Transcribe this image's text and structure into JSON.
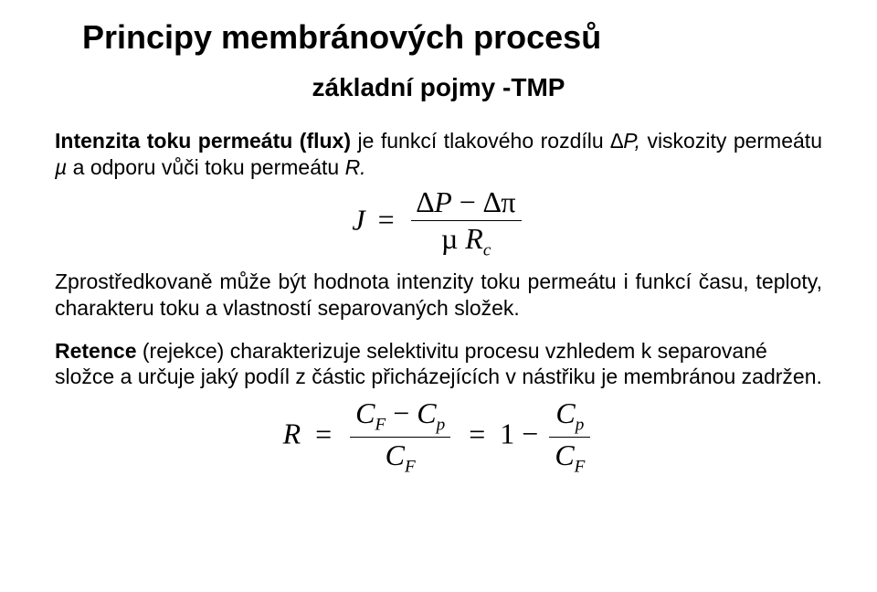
{
  "title": "Principy membránových procesů",
  "subtitle": "základní pojmy -TMP",
  "p1_a": "Intenzita toku permeátu (flux)",
  "p1_b": " je funkcí tlakového rozdílu ",
  "p1_c": "∆P,",
  "p1_d": " viskozity permeátu ",
  "p1_e": "µ",
  "p1_f": " a odporu vůči toku permeátu ",
  "p1_g": "R.",
  "eq1": {
    "lhs": "J",
    "eq": "=",
    "num_a": "∆",
    "num_b": "P",
    "num_c": " − ",
    "num_d": "∆π",
    "den_a": "µ",
    "den_b": " R",
    "den_sub": "c"
  },
  "p2": "Zprostředkovaně může být hodnota intenzity toku permeátu i funkcí času, teploty, charakteru toku a vlastností separovaných složek.",
  "p3_a": "Retence",
  "p3_b": "  (rejekce) charakterizuje selektivitu procesu vzhledem k separované složce a určuje jaký podíl z částic přicházejících v nástřiku je membránou zadržen.",
  "eq2": {
    "lhs": "R",
    "eq1": "=",
    "f1_num_a": "C",
    "f1_num_sub_a": "F",
    "f1_num_b": " − ",
    "f1_num_c": "C",
    "f1_num_sub_c": "p",
    "f1_den_a": "C",
    "f1_den_sub_a": "F",
    "eq2": "=",
    "one": "1",
    "minus": " − ",
    "f2_num_a": "C",
    "f2_num_sub_a": "p",
    "f2_den_a": "C",
    "f2_den_sub_a": "F"
  }
}
